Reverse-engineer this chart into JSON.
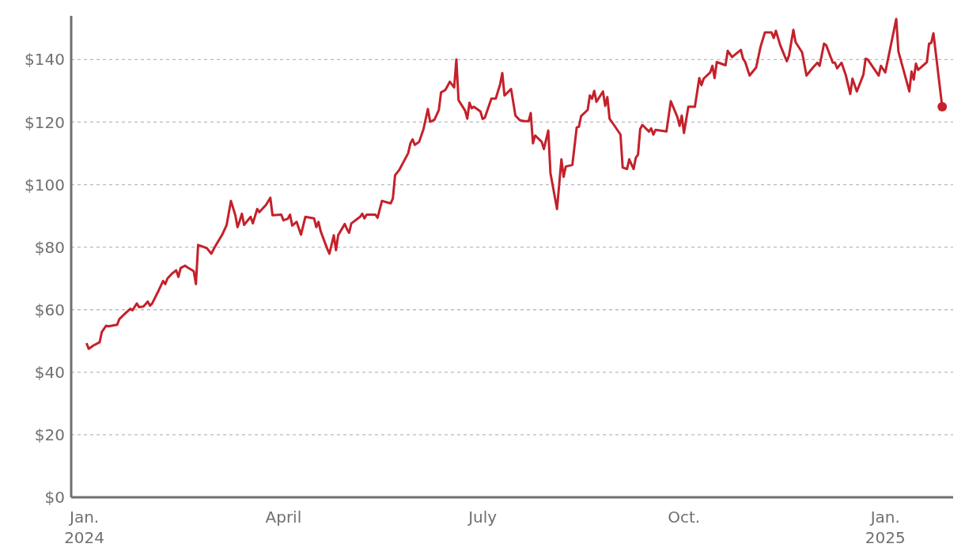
{
  "chart_data": {
    "type": "line",
    "x": [
      "2024-01-02",
      "2024-01-03",
      "2024-01-05",
      "2024-01-08",
      "2024-01-09",
      "2024-01-11",
      "2024-01-12",
      "2024-01-16",
      "2024-01-17",
      "2024-01-20",
      "2024-01-22",
      "2024-01-23",
      "2024-01-25",
      "2024-01-26",
      "2024-01-28",
      "2024-01-30",
      "2024-01-31",
      "2024-02-01",
      "2024-02-04",
      "2024-02-06",
      "2024-02-07",
      "2024-02-08",
      "2024-02-10",
      "2024-02-12",
      "2024-02-13",
      "2024-02-14",
      "2024-02-16",
      "2024-02-17",
      "2024-02-20",
      "2024-02-21",
      "2024-02-22",
      "2024-02-26",
      "2024-02-28",
      "2024-03-01",
      "2024-03-04",
      "2024-03-06",
      "2024-03-08",
      "2024-03-10",
      "2024-03-11",
      "2024-03-12",
      "2024-03-13",
      "2024-03-14",
      "2024-03-17",
      "2024-03-18",
      "2024-03-20",
      "2024-03-21",
      "2024-03-24",
      "2024-03-26",
      "2024-03-27",
      "2024-03-31",
      "2024-04-01",
      "2024-04-03",
      "2024-04-04",
      "2024-04-05",
      "2024-04-07",
      "2024-04-09",
      "2024-04-11",
      "2024-04-15",
      "2024-04-16",
      "2024-04-17",
      "2024-04-18",
      "2024-04-21",
      "2024-04-22",
      "2024-04-24",
      "2024-04-25",
      "2024-04-26",
      "2024-04-29",
      "2024-04-30",
      "2024-05-01",
      "2024-05-02",
      "2024-05-06",
      "2024-05-07",
      "2024-05-08",
      "2024-05-09",
      "2024-05-13",
      "2024-05-14",
      "2024-05-16",
      "2024-05-20",
      "2024-05-21",
      "2024-05-22",
      "2024-05-24",
      "2024-05-28",
      "2024-05-29",
      "2024-05-30",
      "2024-05-31",
      "2024-06-02",
      "2024-06-04",
      "2024-06-06",
      "2024-06-07",
      "2024-06-09",
      "2024-06-11",
      "2024-06-12",
      "2024-06-14",
      "2024-06-16",
      "2024-06-18",
      "2024-06-19",
      "2024-06-20",
      "2024-06-23",
      "2024-06-24",
      "2024-06-25",
      "2024-06-26",
      "2024-06-27",
      "2024-06-30",
      "2024-07-01",
      "2024-07-02",
      "2024-07-05",
      "2024-07-07",
      "2024-07-09",
      "2024-07-10",
      "2024-07-11",
      "2024-07-14",
      "2024-07-16",
      "2024-07-18",
      "2024-07-20",
      "2024-07-22",
      "2024-07-23",
      "2024-07-24",
      "2024-07-25",
      "2024-07-28",
      "2024-07-29",
      "2024-07-31",
      "2024-08-01",
      "2024-08-04",
      "2024-08-06",
      "2024-08-07",
      "2024-08-08",
      "2024-08-11",
      "2024-08-13",
      "2024-08-14",
      "2024-08-15",
      "2024-08-18",
      "2024-08-19",
      "2024-08-20",
      "2024-08-21",
      "2024-08-22",
      "2024-08-25",
      "2024-08-26",
      "2024-08-27",
      "2024-08-28",
      "2024-08-30",
      "2024-09-02",
      "2024-09-03",
      "2024-09-05",
      "2024-09-06",
      "2024-09-08",
      "2024-09-09",
      "2024-09-10",
      "2024-09-11",
      "2024-09-12",
      "2024-09-15",
      "2024-09-16",
      "2024-09-17",
      "2024-09-18",
      "2024-09-23",
      "2024-09-25",
      "2024-09-28",
      "2024-09-29",
      "2024-09-30",
      "2024-10-01",
      "2024-10-03",
      "2024-10-06",
      "2024-10-08",
      "2024-10-09",
      "2024-10-10",
      "2024-10-13",
      "2024-10-14",
      "2024-10-15",
      "2024-10-16",
      "2024-10-20",
      "2024-10-21",
      "2024-10-23",
      "2024-10-27",
      "2024-10-28",
      "2024-10-29",
      "2024-10-31",
      "2024-11-03",
      "2024-11-05",
      "2024-11-07",
      "2024-11-10",
      "2024-11-11",
      "2024-11-12",
      "2024-11-14",
      "2024-11-17",
      "2024-11-18",
      "2024-11-20",
      "2024-11-21",
      "2024-11-24",
      "2024-11-26",
      "2024-11-29",
      "2024-12-01",
      "2024-12-02",
      "2024-12-04",
      "2024-12-05",
      "2024-12-08",
      "2024-12-09",
      "2024-12-10",
      "2024-12-12",
      "2024-12-14",
      "2024-12-16",
      "2024-12-17",
      "2024-12-19",
      "2024-12-22",
      "2024-12-23",
      "2024-12-24",
      "2024-12-29",
      "2024-12-30",
      "2025-01-01",
      "2025-01-06",
      "2025-01-07",
      "2025-01-12",
      "2025-01-13",
      "2025-01-14",
      "2025-01-15",
      "2025-01-16",
      "2025-01-20",
      "2025-01-21",
      "2025-01-22",
      "2025-01-23",
      "2025-01-27"
    ],
    "series": [
      {
        "color": "#c4212b",
        "values": [
          49.3,
          47.5,
          48.5,
          49.6,
          52.9,
          54.9,
          54.7,
          55.2,
          57,
          59,
          60.3,
          59.8,
          62,
          60.8,
          61,
          62.6,
          61.3,
          62,
          66.2,
          69.2,
          68.2,
          70,
          71.5,
          72.6,
          70.5,
          73.3,
          74.1,
          73.6,
          72.3,
          68.2,
          80.7,
          79.7,
          77.9,
          80.5,
          84,
          87,
          94.8,
          90.2,
          86.4,
          88.4,
          90.7,
          87.1,
          89.7,
          87.6,
          92.2,
          91.2,
          93.5,
          95.8,
          90.2,
          90.4,
          88.6,
          89.1,
          90.4,
          86.9,
          88.1,
          84,
          89.7,
          89.2,
          86.4,
          88.1,
          85.1,
          79.5,
          77.9,
          83.8,
          79,
          83.8,
          87.4,
          85.8,
          84.6,
          87.6,
          89.7,
          90.7,
          89.2,
          90.4,
          90.4,
          89.4,
          94.8,
          94,
          95.6,
          103,
          104.8,
          110.1,
          113.2,
          114.5,
          112.7,
          113.7,
          117.8,
          124.2,
          120.1,
          120.8,
          123.9,
          129.5,
          130.3,
          132.9,
          131.1,
          140,
          127,
          123.7,
          121.1,
          126.2,
          124.4,
          124.9,
          123.4,
          121,
          121.4,
          127.5,
          127.5,
          132.1,
          135.7,
          128.5,
          130.6,
          122.1,
          120.6,
          120.3,
          120.3,
          122.9,
          113.2,
          115.7,
          113.7,
          111.4,
          117.3,
          103.7,
          92.2,
          108.1,
          102.5,
          105.8,
          106.3,
          118.3,
          118.5,
          121.9,
          123.9,
          128.5,
          127.5,
          130,
          126.5,
          129.8,
          125.2,
          128,
          121.1,
          119.1,
          116,
          105.5,
          105,
          108.1,
          105,
          108.6,
          109.6,
          117.8,
          119.1,
          117,
          118,
          116,
          117.5,
          117,
          126.7,
          121.6,
          118.8,
          122.1,
          116.5,
          124.9,
          124.9,
          134.1,
          131.8,
          133.9,
          135.9,
          138,
          134.1,
          139.2,
          138.2,
          142.8,
          140.8,
          143.1,
          140.3,
          139.2,
          134.9,
          137.5,
          144.1,
          148.7,
          148.7,
          146.9,
          149.2,
          144.6,
          139.5,
          141.3,
          149.5,
          145.6,
          142.3,
          134.9,
          137.5,
          139,
          138,
          145.1,
          144.6,
          139,
          139,
          137.2,
          139,
          134.9,
          129,
          133.9,
          129.8,
          135.2,
          140.3,
          140,
          134.9,
          138,
          135.9,
          153,
          142.6,
          129.8,
          136.2,
          133.6,
          138.7,
          136.7,
          139.2,
          145.1,
          145.3,
          148.4,
          124.9
        ]
      },
      {
        "type": "scatter",
        "color": "#c4212b",
        "marker": "circle",
        "x": [
          "2025-01-27"
        ],
        "values": [
          124.9
        ]
      }
    ],
    "xlim": [
      "2023-12-26",
      "2025-02-01"
    ],
    "xticks": [
      {
        "value": "2024-01-01",
        "label": "Jan.\n2024"
      },
      {
        "value": "2024-04-01",
        "label": "April"
      },
      {
        "value": "2024-07-01",
        "label": "July"
      },
      {
        "value": "2024-10-01",
        "label": "Oct."
      },
      {
        "value": "2025-01-01",
        "label": "Jan.\n2025"
      }
    ],
    "ylim": [
      0,
      154
    ],
    "yticks": [
      {
        "value": 0,
        "label": "$0"
      },
      {
        "value": 20,
        "label": "$20"
      },
      {
        "value": 40,
        "label": "$40"
      },
      {
        "value": 60,
        "label": "$60"
      },
      {
        "value": 80,
        "label": "$80"
      },
      {
        "value": 100,
        "label": "$100"
      },
      {
        "value": 120,
        "label": "$120"
      },
      {
        "value": 140,
        "label": "$140"
      }
    ],
    "grid": "y",
    "legend": false,
    "marker": "none",
    "line_style": "solid"
  }
}
